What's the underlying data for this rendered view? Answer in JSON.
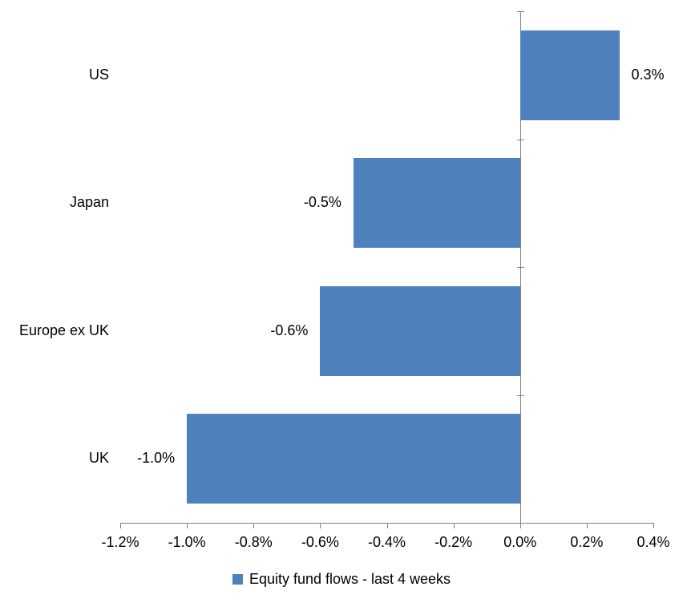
{
  "chart_data": {
    "type": "bar",
    "orientation": "horizontal",
    "title": "",
    "categories": [
      "US",
      "Japan",
      "Europe ex UK",
      "UK"
    ],
    "values": [
      0.3,
      -0.5,
      -0.6,
      -1.0
    ],
    "data_labels": [
      "0.3%",
      "-0.5%",
      "-0.6%",
      "-1.0%"
    ],
    "series_name": "Equity fund flows - last 4 weeks",
    "x_ticks": [
      "-1.2%",
      "-1.0%",
      "-0.8%",
      "-0.6%",
      "-0.4%",
      "-0.2%",
      "0.0%",
      "0.2%",
      "0.4%"
    ],
    "x_tick_values": [
      -1.2,
      -1.0,
      -0.8,
      -0.6,
      -0.4,
      -0.2,
      0.0,
      0.2,
      0.4
    ],
    "xlim": [
      -1.2,
      0.4
    ],
    "xlabel": "",
    "ylabel": "",
    "grid": false,
    "legend_position": "bottom",
    "bar_color": "#4F81BD",
    "axis_color": "#808080",
    "text_color": "#000000"
  }
}
